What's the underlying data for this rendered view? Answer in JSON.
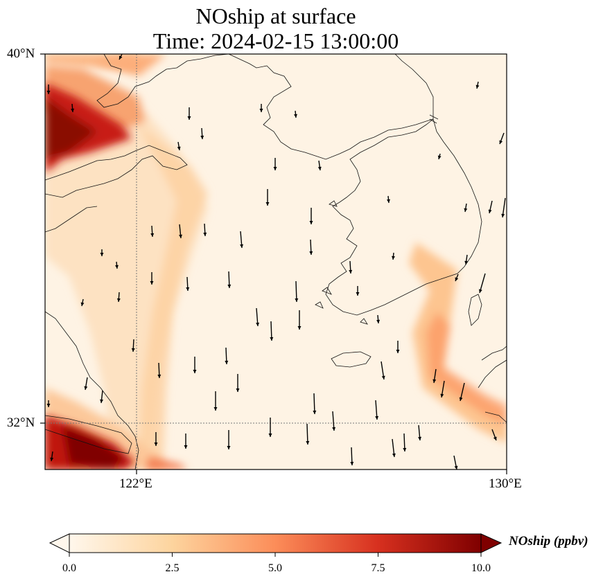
{
  "title": {
    "line1": "NOship at surface",
    "line2": "Time: 2024-02-15 13:00:00"
  },
  "map": {
    "extent": {
      "lon_min": 120.0,
      "lon_max": 130.0,
      "lat_min": 31.0,
      "lat_max": 40.0
    },
    "lat_ticks": [
      {
        "value": 40,
        "label": "40°N"
      },
      {
        "value": 32,
        "label": "32°N"
      }
    ],
    "lon_ticks": [
      {
        "value": 122,
        "label": "122°E"
      },
      {
        "value": 130,
        "label": "130°E"
      }
    ],
    "gridlines": "dotted",
    "wind_vectors": true
  },
  "colorbar": {
    "label": "NOship (ppbv)",
    "min": 0.0,
    "max": 10.0,
    "extend": "both",
    "colormap": "OrRd",
    "colors": [
      "#fff7ec",
      "#fdd49e",
      "#fc8d59",
      "#d7301f",
      "#7f0000"
    ],
    "ticks": [
      "0.0",
      "2.5",
      "5.0",
      "7.5",
      "10.0"
    ]
  }
}
